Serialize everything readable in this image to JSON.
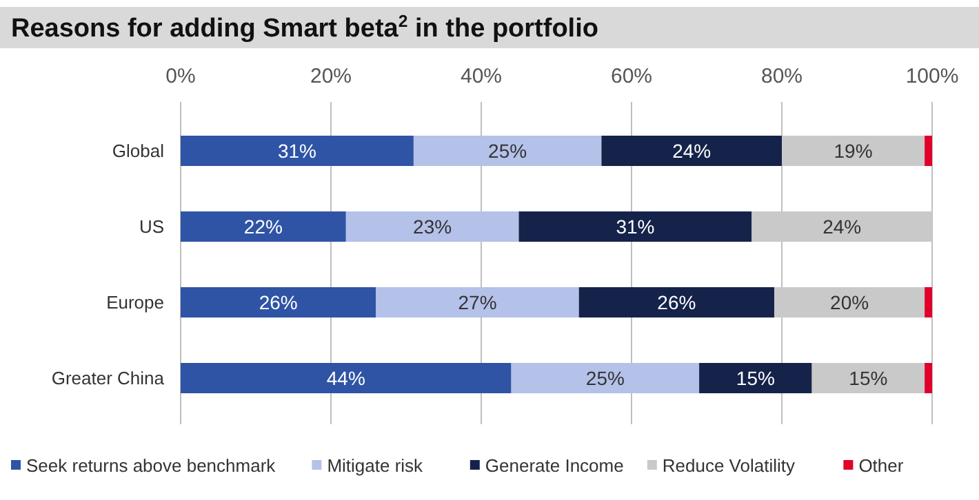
{
  "chart_data": {
    "type": "bar",
    "title": "Reasons for adding Smart beta$^{2}$ in the portfolio",
    "orientation": "horizontal",
    "stacked": true,
    "categories": [
      "Global",
      "US",
      "Europe",
      "Greater China"
    ],
    "series": [
      {
        "name": "Seek returns above benchmark",
        "color": "#2f54a5",
        "values": [
          31,
          22,
          26,
          44
        ],
        "value_labels": [
          "31%",
          "22%",
          "26%",
          "44%"
        ]
      },
      {
        "name": "Mitigate risk",
        "color": "#b4c1e9",
        "values": [
          25,
          23,
          27,
          25
        ],
        "value_labels": [
          "25%",
          "23%",
          "27%",
          "25%"
        ]
      },
      {
        "name": "Generate Income",
        "color": "#15234b",
        "values": [
          24,
          31,
          26,
          15
        ],
        "value_labels": [
          "24%",
          "31%",
          "26%",
          "15%"
        ]
      },
      {
        "name": "Reduce Volatility",
        "color": "#c9c9c9",
        "values": [
          19,
          24,
          20,
          15
        ],
        "value_labels": [
          "19%",
          "24%",
          "20%",
          "15%"
        ]
      },
      {
        "name": "Other",
        "color": "#e0002b",
        "values": [
          1,
          0,
          1,
          1
        ]
      }
    ],
    "xlim": [
      0,
      100
    ],
    "xticks": [
      {
        "value": 0,
        "label": "0%"
      },
      {
        "value": 20,
        "label": "20%"
      },
      {
        "value": 40,
        "label": "40%"
      },
      {
        "value": 60,
        "label": "60%"
      },
      {
        "value": 80,
        "label": "80%"
      },
      {
        "value": 100,
        "label": "100%"
      }
    ],
    "grid": "x",
    "legend": "bottom"
  }
}
